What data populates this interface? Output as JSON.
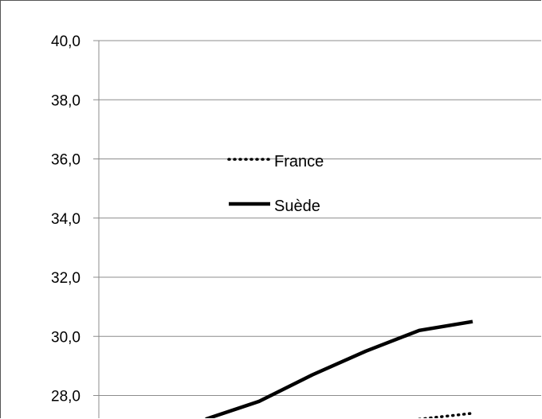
{
  "chart_data": {
    "type": "line",
    "title": "",
    "xlabel": "",
    "ylabel": "",
    "ylim": [
      27.2,
      40.0
    ],
    "ytick_values": [
      28.0,
      30.0,
      32.0,
      34.0,
      36.0,
      38.0,
      40.0
    ],
    "yticks": [
      "28,0",
      "30,0",
      "32,0",
      "34,0",
      "36,0",
      "38,0",
      "40,0"
    ],
    "grid": true,
    "legend_position": "upper-left-inside",
    "x": [
      0,
      1,
      2,
      3,
      4,
      5,
      6,
      7
    ],
    "series": [
      {
        "name": "France",
        "style": "dotted",
        "color": "#000000",
        "values": [
          null,
          null,
          null,
          null,
          null,
          null,
          27.2,
          27.4
        ]
      },
      {
        "name": "Suède",
        "style": "solid",
        "color": "#000000",
        "values": [
          null,
          null,
          27.2,
          27.8,
          28.7,
          29.5,
          30.2,
          30.5
        ]
      }
    ]
  }
}
